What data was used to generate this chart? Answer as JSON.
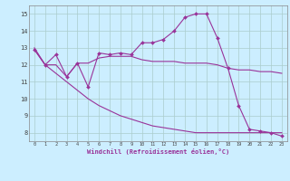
{
  "xlabel": "Windchill (Refroidissement éolien,°C)",
  "background_color": "#cceeff",
  "grid_color": "#aacccc",
  "line_color": "#993399",
  "xlim": [
    -0.5,
    23.5
  ],
  "ylim": [
    7.5,
    15.5
  ],
  "yticks": [
    8,
    9,
    10,
    11,
    12,
    13,
    14,
    15
  ],
  "xticks": [
    0,
    1,
    2,
    3,
    4,
    5,
    6,
    7,
    8,
    9,
    10,
    11,
    12,
    13,
    14,
    15,
    16,
    17,
    18,
    19,
    20,
    21,
    22,
    23
  ],
  "line1_x": [
    0,
    1,
    2,
    3,
    4,
    5,
    6,
    7,
    8,
    9,
    10,
    11,
    12,
    13,
    14,
    15,
    16,
    17,
    18,
    19,
    20,
    21,
    22,
    23
  ],
  "line1_y": [
    12.9,
    12.0,
    12.6,
    11.3,
    12.1,
    10.7,
    12.7,
    12.6,
    12.7,
    12.6,
    13.3,
    13.3,
    13.5,
    14.0,
    14.8,
    15.0,
    15.0,
    13.6,
    11.8,
    9.6,
    8.2,
    8.1,
    8.0,
    7.8
  ],
  "line2_x": [
    0,
    1,
    2,
    3,
    4,
    5,
    6,
    7,
    8,
    9,
    10,
    11,
    12,
    13,
    14,
    15,
    16,
    17,
    18,
    19,
    20,
    21,
    22,
    23
  ],
  "line2_y": [
    12.9,
    12.0,
    12.0,
    11.3,
    12.1,
    12.1,
    12.4,
    12.5,
    12.5,
    12.5,
    12.3,
    12.2,
    12.2,
    12.2,
    12.1,
    12.1,
    12.1,
    12.0,
    11.8,
    11.7,
    11.7,
    11.6,
    11.6,
    11.5
  ],
  "line3_x": [
    0,
    1,
    2,
    3,
    4,
    5,
    6,
    7,
    8,
    9,
    10,
    11,
    12,
    13,
    14,
    15,
    16,
    17,
    18,
    19,
    20,
    21,
    22,
    23
  ],
  "line3_y": [
    13.0,
    12.0,
    11.5,
    11.0,
    10.5,
    10.0,
    9.6,
    9.3,
    9.0,
    8.8,
    8.6,
    8.4,
    8.3,
    8.2,
    8.1,
    8.0,
    8.0,
    8.0,
    8.0,
    8.0,
    8.0,
    8.0,
    8.0,
    8.0
  ]
}
